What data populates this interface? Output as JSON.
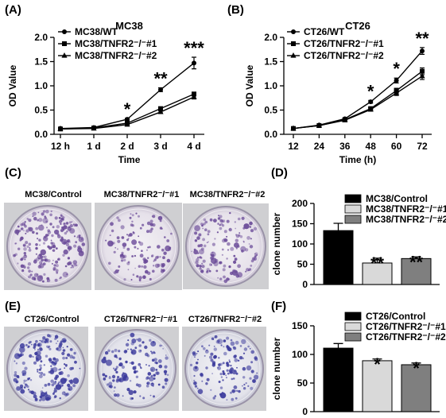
{
  "panels": {
    "A": "(A)",
    "B": "(B)",
    "C": "(C)",
    "D": "(D)",
    "E": "(E)",
    "F": "(F)"
  },
  "colors": {
    "black": "#000000",
    "light_gray": "#d9d9d9",
    "mid_gray": "#7f7f7f",
    "stain_mc38": "#6a4a98",
    "stain_ct26": "#3b3a9c"
  },
  "dishes_c": [
    "MC38/Control",
    "MC38/TNFR2⁻/⁻#1",
    "MC38/TNFR2⁻/⁻#2"
  ],
  "dishes_e": [
    "CT26/Control",
    "CT26/TNFR2⁻/⁻#1",
    "CT26/TNFR2⁻/⁻#2"
  ],
  "chart_data": [
    {
      "id": "A",
      "type": "line",
      "title": "MC38",
      "xlabel": "Time",
      "ylabel": "OD Value",
      "categories": [
        "12 h",
        "1 d",
        "2 d",
        "3 d",
        "4 d"
      ],
      "ylim": [
        0,
        2.0
      ],
      "yticks": [
        "0.0",
        "0.5",
        "1.0",
        "1.5",
        "2.0"
      ],
      "series": [
        {
          "name": "MC38/WT",
          "marker": "circle",
          "values": [
            0.12,
            0.14,
            0.31,
            0.92,
            1.47
          ],
          "errors": [
            0.01,
            0.01,
            0.02,
            0.04,
            0.12
          ]
        },
        {
          "name": "MC38/TNFR2⁻/⁻#1",
          "marker": "square",
          "values": [
            0.11,
            0.13,
            0.23,
            0.53,
            0.83
          ],
          "errors": [
            0.01,
            0.01,
            0.01,
            0.02,
            0.04
          ]
        },
        {
          "name": "MC38/TNFR2⁻/⁻#2",
          "marker": "triangle",
          "values": [
            0.11,
            0.12,
            0.2,
            0.46,
            0.77
          ],
          "errors": [
            0.01,
            0.01,
            0.01,
            0.02,
            0.04
          ]
        }
      ],
      "annotations": [
        {
          "category": "2 d",
          "text": "*"
        },
        {
          "category": "3 d",
          "text": "**"
        },
        {
          "category": "4 d",
          "text": "***"
        }
      ]
    },
    {
      "id": "B",
      "type": "line",
      "title": "CT26",
      "xlabel": "Time (h)",
      "ylabel": "OD Value",
      "categories": [
        "12",
        "24",
        "36",
        "48",
        "60",
        "72"
      ],
      "ylim": [
        0,
        2.0
      ],
      "yticks": [
        "0.0",
        "0.5",
        "1.0",
        "1.5",
        "2.0"
      ],
      "series": [
        {
          "name": "CT26/WT",
          "marker": "circle",
          "values": [
            0.12,
            0.19,
            0.32,
            0.67,
            1.11,
            1.72
          ],
          "errors": [
            0.01,
            0.01,
            0.02,
            0.03,
            0.05,
            0.07
          ]
        },
        {
          "name": "CT26/TNFR2⁻/⁻#1",
          "marker": "square",
          "values": [
            0.12,
            0.18,
            0.3,
            0.53,
            0.9,
            1.3
          ],
          "errors": [
            0.01,
            0.01,
            0.02,
            0.03,
            0.05,
            0.07
          ]
        },
        {
          "name": "CT26/TNFR2⁻/⁻#2",
          "marker": "triangle",
          "values": [
            0.12,
            0.18,
            0.29,
            0.51,
            0.85,
            1.2
          ],
          "errors": [
            0.01,
            0.01,
            0.02,
            0.03,
            0.05,
            0.07
          ]
        }
      ],
      "annotations": [
        {
          "category": "48",
          "text": "*"
        },
        {
          "category": "60",
          "text": "*"
        },
        {
          "category": "72",
          "text": "**"
        }
      ]
    },
    {
      "id": "D",
      "type": "bar",
      "ylabel": "clone number",
      "categories": [
        "MC38/Control",
        "MC38/TNFR2⁻/⁻#1",
        "MC38/TNFR2⁻/⁻#2"
      ],
      "values": [
        133,
        53,
        64
      ],
      "errors": [
        18,
        12,
        4
      ],
      "ylim": [
        0,
        200
      ],
      "yticks": [
        "0",
        "50",
        "100",
        "150",
        "200"
      ],
      "annotations": [
        "",
        "**",
        "**"
      ]
    },
    {
      "id": "F",
      "type": "bar",
      "ylabel": "clone number",
      "categories": [
        "CT26/Control",
        "CT26/TNFR2⁻/⁻#1",
        "CT26/TNFR2⁻/⁻#2"
      ],
      "values": [
        111,
        89,
        82
      ],
      "errors": [
        8,
        3,
        3
      ],
      "ylim": [
        0,
        150
      ],
      "yticks": [
        "0",
        "50",
        "100",
        "150"
      ],
      "annotations": [
        "",
        "*",
        "*"
      ]
    }
  ]
}
